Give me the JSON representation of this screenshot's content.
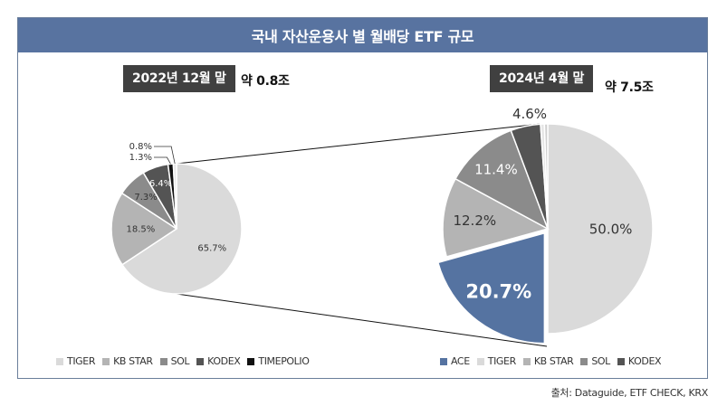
{
  "title": "국내 자산운용사 별 월배당 ETF 규모",
  "source": "출처: Dataguide, ETF CHECK, KRX",
  "colors": {
    "title_bg": "#5873a0",
    "ACE": "#5573a1",
    "TIGER": "#dadada",
    "KB STAR": "#b4b4b4",
    "SOL": "#8b8b8b",
    "KODEX": "#545454",
    "TIMEPOLIO": "#111111"
  },
  "chart_data": [
    {
      "type": "pie",
      "period_label": "2022년 12월 말",
      "total_label": "약 0.8조",
      "slices": [
        {
          "name": "TIGER",
          "value": 65.7,
          "label": "65.7%"
        },
        {
          "name": "KB STAR",
          "value": 18.5,
          "label": "18.5%"
        },
        {
          "name": "SOL",
          "value": 7.3,
          "label": "7.3%"
        },
        {
          "name": "KODEX",
          "value": 6.4,
          "label": "6.4%"
        },
        {
          "name": "TIMEPOLIO",
          "value": 1.3,
          "label": "1.3%"
        },
        {
          "name": "",
          "value": 0.8,
          "label": "0.8%"
        }
      ],
      "legend": [
        "TIGER",
        "KB STAR",
        "SOL",
        "KODEX",
        "TIMEPOLIO"
      ]
    },
    {
      "type": "pie",
      "period_label": "2024년 4월 말",
      "total_label": "약 7.5조",
      "slices": [
        {
          "name": "TIGER",
          "value": 50.0,
          "label": "50.0%"
        },
        {
          "name": "ACE",
          "value": 20.7,
          "label": "20.7%",
          "exploded": true
        },
        {
          "name": "KB STAR",
          "value": 12.2,
          "label": "12.2%"
        },
        {
          "name": "SOL",
          "value": 11.4,
          "label": "11.4%"
        },
        {
          "name": "KODEX",
          "value": 4.6,
          "label": "4.6%"
        },
        {
          "name": "",
          "value": 0.6,
          "label": ""
        },
        {
          "name": "",
          "value": 0.5,
          "label": ""
        }
      ],
      "legend": [
        "ACE",
        "TIGER",
        "KB STAR",
        "SOL",
        "KODEX"
      ]
    }
  ]
}
